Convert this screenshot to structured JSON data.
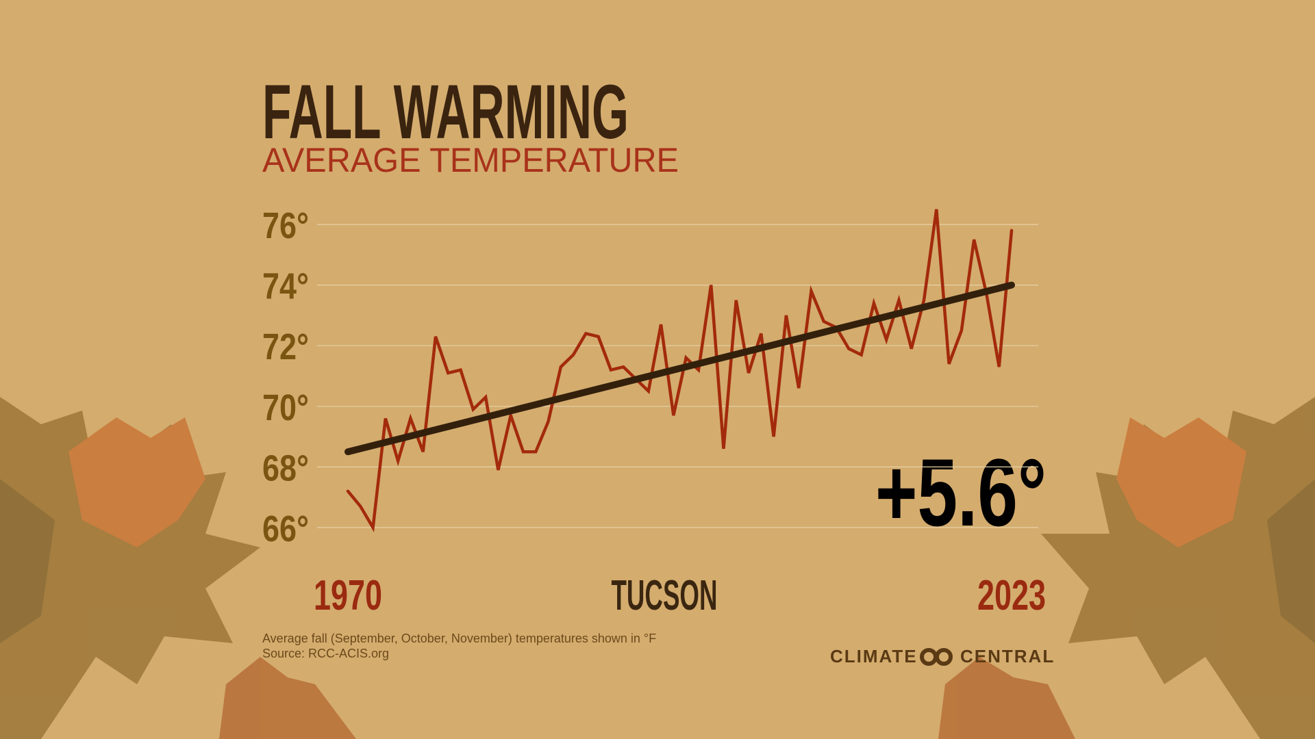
{
  "chart_data": {
    "type": "line",
    "title": "FALL WARMING",
    "subtitle": "AVERAGE TEMPERATURE",
    "location": "TUCSON",
    "annotation": "+5.6°",
    "footnote": "Average fall (September, October, November) temperatures shown in °F",
    "source": "Source: RCC-ACIS.org",
    "logo": [
      "CLIMATE",
      "CENTRAL"
    ],
    "x": [
      1970,
      1971,
      1972,
      1973,
      1974,
      1975,
      1976,
      1977,
      1978,
      1979,
      1980,
      1981,
      1982,
      1983,
      1984,
      1985,
      1986,
      1987,
      1988,
      1989,
      1990,
      1991,
      1992,
      1993,
      1994,
      1995,
      1996,
      1997,
      1998,
      1999,
      2000,
      2001,
      2002,
      2003,
      2004,
      2005,
      2006,
      2007,
      2008,
      2009,
      2010,
      2011,
      2012,
      2013,
      2014,
      2015,
      2016,
      2017,
      2018,
      2019,
      2020,
      2021,
      2022,
      2023
    ],
    "values": [
      67.2,
      66.7,
      66.0,
      69.6,
      68.2,
      69.6,
      68.5,
      72.3,
      71.1,
      71.2,
      69.9,
      70.3,
      67.9,
      69.7,
      68.5,
      68.5,
      69.5,
      71.3,
      71.7,
      72.4,
      72.3,
      71.2,
      71.3,
      70.9,
      70.5,
      72.7,
      69.7,
      71.6,
      71.2,
      74.0,
      68.6,
      73.5,
      71.1,
      72.4,
      69.0,
      73.0,
      70.6,
      73.8,
      72.8,
      72.6,
      71.9,
      71.7,
      73.4,
      72.2,
      73.5,
      71.9,
      73.5,
      76.5,
      71.4,
      72.5,
      75.5,
      73.7,
      71.3,
      75.8
    ],
    "color": "#a32a0c",
    "trend": {
      "x": [
        1970,
        2023
      ],
      "values": [
        68.5,
        74.0
      ],
      "color": "#33200c"
    },
    "xlim": [
      1970,
      2023
    ],
    "xticks": [
      1970,
      2023
    ],
    "ylim": [
      66,
      76
    ],
    "yticks": [
      {
        "value": 66,
        "label": "66°"
      },
      {
        "value": 68,
        "label": "68°"
      },
      {
        "value": 70,
        "label": "70°"
      },
      {
        "value": 72,
        "label": "72°"
      },
      {
        "value": 74,
        "label": "74°"
      },
      {
        "value": 76,
        "label": "76°"
      }
    ],
    "grid": true
  }
}
